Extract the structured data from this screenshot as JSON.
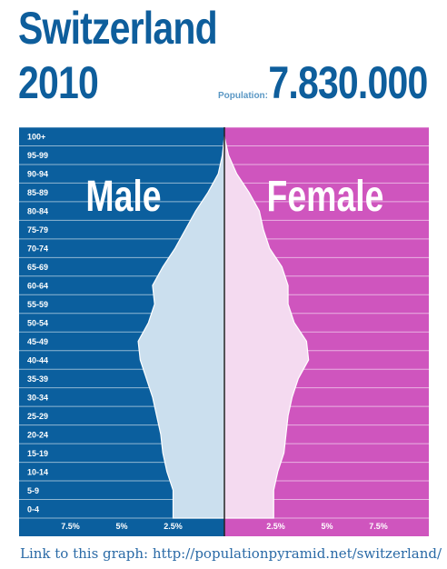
{
  "header": {
    "country": "Switzerland",
    "year": "2010",
    "population_label": "Population:",
    "population_value": "7.830.000"
  },
  "link_text": "Link to this graph: http://populationpyramid.net/switzerland/",
  "colors": {
    "male_bg": "#0b5f9e",
    "female_bg": "#cf55be",
    "male_fill": "#cbdfee",
    "female_fill": "#f4daf0",
    "title": "#0e5e9c"
  },
  "chart_data": {
    "type": "area",
    "title": "",
    "xlabel": "",
    "ylabel": "",
    "categories": [
      "0-4",
      "5-9",
      "10-14",
      "15-19",
      "20-24",
      "25-29",
      "30-34",
      "35-39",
      "40-44",
      "45-49",
      "50-54",
      "55-59",
      "60-64",
      "65-69",
      "70-74",
      "75-79",
      "80-84",
      "85-89",
      "90-94",
      "95-99",
      "100+"
    ],
    "series": [
      {
        "name": "Male",
        "values": [
          2.5,
          2.5,
          2.8,
          3.0,
          3.1,
          3.3,
          3.5,
          3.8,
          4.1,
          4.2,
          3.7,
          3.4,
          3.5,
          3.0,
          2.4,
          1.9,
          1.4,
          0.8,
          0.3,
          0.1,
          0.0
        ]
      },
      {
        "name": "Female",
        "values": [
          2.4,
          2.4,
          2.6,
          2.9,
          3.0,
          3.1,
          3.3,
          3.6,
          4.1,
          4.0,
          3.4,
          3.1,
          3.1,
          2.8,
          2.2,
          1.9,
          1.7,
          1.2,
          0.6,
          0.2,
          0.0
        ]
      }
    ],
    "xlim": [
      0,
      10
    ],
    "x_ticks_left": [
      "7.5%",
      "5%",
      "2.5%"
    ],
    "x_ticks_right": [
      "2.5%",
      "5%",
      "7.5%"
    ],
    "x_tick_values": [
      7.5,
      5,
      2.5
    ],
    "side_labels": [
      "Male",
      "Female"
    ],
    "grid": true
  }
}
